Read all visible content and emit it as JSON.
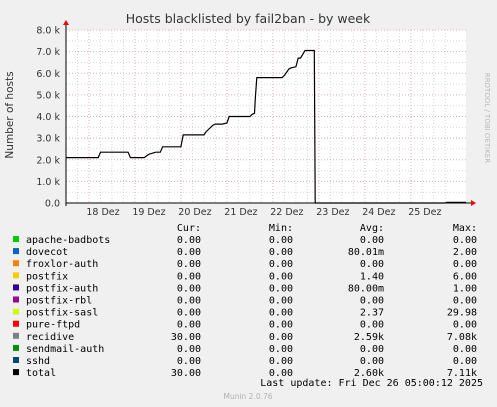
{
  "chart_data": {
    "type": "line",
    "title": "Hosts blacklisted by fail2ban - by week",
    "ylabel": "Number of hosts",
    "xlabel": "",
    "watermark": "RRDTOOL / TOBI OETIKER",
    "footer": "Munin 2.0.76",
    "last_update": "Last update:  Fri Dec 26 05:00:12 2025",
    "ylim": [
      0,
      8000
    ],
    "yticks": [
      {
        "value": 0,
        "label": "0.0"
      },
      {
        "value": 1000,
        "label": "1.0 k"
      },
      {
        "value": 2000,
        "label": "2.0 k"
      },
      {
        "value": 3000,
        "label": "3.0 k"
      },
      {
        "value": 4000,
        "label": "4.0 k"
      },
      {
        "value": 5000,
        "label": "5.0 k"
      },
      {
        "value": 6000,
        "label": "6.0 k"
      },
      {
        "value": 7000,
        "label": "7.0 k"
      },
      {
        "value": 8000,
        "label": "8.0 k"
      }
    ],
    "xlim": [
      17.5,
      26.2
    ],
    "xticks": [
      {
        "value": 18,
        "label": "18 Dez"
      },
      {
        "value": 19,
        "label": "19 Dez"
      },
      {
        "value": 20,
        "label": "20 Dez"
      },
      {
        "value": 21,
        "label": "21 Dez"
      },
      {
        "value": 22,
        "label": "22 Dez"
      },
      {
        "value": 23,
        "label": "23 Dez"
      },
      {
        "value": 24,
        "label": "24 Dez"
      },
      {
        "value": 25,
        "label": "25 Dez"
      }
    ],
    "colors": {
      "background": "#f0f0f0",
      "plot_bg": "#ffffff",
      "grid_major": "#e0b0b0",
      "grid_minor": "#d8d8d8",
      "axis": "#000000",
      "arrow": "#ff0000"
    },
    "series": [
      {
        "name": "total",
        "color": "#000000",
        "x": [
          17.5,
          18.2,
          18.25,
          18.85,
          18.9,
          19.2,
          19.3,
          19.45,
          19.55,
          19.6,
          19.62,
          20.0,
          20.05,
          20.5,
          20.55,
          20.7,
          20.75,
          20.9,
          21.0,
          21.05,
          21.5,
          21.55,
          21.6,
          21.62,
          21.65,
          22.2,
          22.25,
          22.35,
          22.4,
          22.5,
          22.55,
          22.6,
          22.7,
          22.85,
          22.9,
          22.92,
          22.93,
          25.75,
          25.78,
          26.2
        ],
        "y": [
          2100,
          2100,
          2350,
          2350,
          2100,
          2100,
          2250,
          2350,
          2350,
          2600,
          2600,
          2600,
          3150,
          3150,
          3300,
          3600,
          3650,
          3650,
          3700,
          4000,
          4000,
          4100,
          4150,
          4900,
          5800,
          5800,
          5900,
          6200,
          6250,
          6300,
          6700,
          6700,
          7050,
          7050,
          7050,
          0,
          0,
          0,
          30,
          30
        ]
      }
    ],
    "legend": {
      "headers": {
        "cur": "Cur:",
        "min": "Min:",
        "avg": "Avg:",
        "max": "Max:"
      },
      "rows": [
        {
          "name": "apache-badbots",
          "color": "#00cc00",
          "cur": "0.00",
          "min": "0.00",
          "avg": "0.00",
          "max": "0.00"
        },
        {
          "name": "dovecot",
          "color": "#0066b3",
          "cur": "0.00",
          "min": "0.00",
          "avg": "80.01m",
          "max": "2.00"
        },
        {
          "name": "froxlor-auth",
          "color": "#ff8000",
          "cur": "0.00",
          "min": "0.00",
          "avg": "0.00",
          "max": "0.00"
        },
        {
          "name": "postfix",
          "color": "#ffcc00",
          "cur": "0.00",
          "min": "0.00",
          "avg": "1.40",
          "max": "6.00"
        },
        {
          "name": "postfix-auth",
          "color": "#330099",
          "cur": "0.00",
          "min": "0.00",
          "avg": "80.00m",
          "max": "1.00"
        },
        {
          "name": "postfix-rbl",
          "color": "#990099",
          "cur": "0.00",
          "min": "0.00",
          "avg": "0.00",
          "max": "0.00"
        },
        {
          "name": "postfix-sasl",
          "color": "#ccff00",
          "cur": "0.00",
          "min": "0.00",
          "avg": "2.37",
          "max": "29.98"
        },
        {
          "name": "pure-ftpd",
          "color": "#ff0000",
          "cur": "0.00",
          "min": "0.00",
          "avg": "0.00",
          "max": "0.00"
        },
        {
          "name": "recidive",
          "color": "#808080",
          "cur": "30.00",
          "min": "0.00",
          "avg": "2.59k",
          "max": "7.08k"
        },
        {
          "name": "sendmail-auth",
          "color": "#008f00",
          "cur": "0.00",
          "min": "0.00",
          "avg": "0.00",
          "max": "0.00"
        },
        {
          "name": "sshd",
          "color": "#00487d",
          "cur": "0.00",
          "min": "0.00",
          "avg": "0.00",
          "max": "0.00"
        },
        {
          "name": "total",
          "color": "#000000",
          "cur": "30.00",
          "min": "0.00",
          "avg": "2.60k",
          "max": "7.11k"
        }
      ]
    }
  }
}
